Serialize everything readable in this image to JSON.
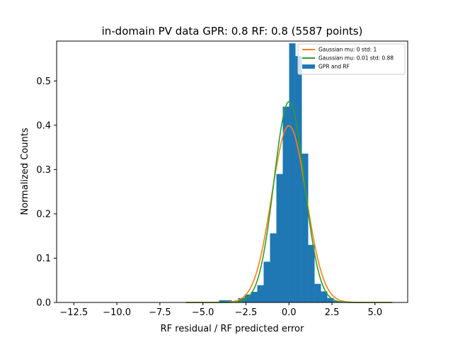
{
  "chart_data": {
    "type": "bar",
    "title": "in-domain PV data GPR: 0.8 RF: 0.8 (5587 points)",
    "xlabel": "RF residual / RF predicted error",
    "ylabel": "Normalized Counts",
    "xlim": [
      -13.5,
      6.9
    ],
    "ylim": [
      0,
      0.59
    ],
    "xticks": [
      -12.5,
      -10.0,
      -7.5,
      -5.0,
      -2.5,
      0.0,
      2.5,
      5.0
    ],
    "xtick_labels": [
      "−12.5",
      "−10.0",
      "−7.5",
      "−5.0",
      "−2.5",
      "0.0",
      "2.5",
      "5.0"
    ],
    "yticks": [
      0.0,
      0.1,
      0.2,
      0.3,
      0.4,
      0.5
    ],
    "ytick_labels": [
      "0.0",
      "0.1",
      "0.2",
      "0.3",
      "0.4",
      "0.5"
    ],
    "grid": false,
    "legend_position": "top-right",
    "histogram": {
      "name": "GPR and RF",
      "color": "#1f77b4",
      "bin_width": 0.37,
      "bins_left": [
        -4.06,
        -3.69,
        -3.32,
        -2.95,
        -2.58,
        -2.21,
        -1.84,
        -1.47,
        -1.1,
        -0.73,
        -0.36,
        0.01,
        0.38,
        0.75,
        1.12,
        1.49,
        1.86,
        2.23,
        2.6
      ],
      "values": [
        0.005,
        0.005,
        0.002,
        0.01,
        0.018,
        0.024,
        0.039,
        0.092,
        0.156,
        0.29,
        0.442,
        0.585,
        0.556,
        0.336,
        0.13,
        0.042,
        0.025,
        0.01,
        0.003
      ]
    },
    "curves": [
      {
        "name": "Gaussian mu: 0 std: 1",
        "mu": 0,
        "std": 1,
        "color": "#ff7f0e",
        "x_range": [
          -6,
          6
        ]
      },
      {
        "name": "Gaussian mu: 0.01 std: 0.88",
        "mu": 0.01,
        "std": 0.88,
        "color": "#2ca02c",
        "x_range": [
          -6,
          6
        ]
      }
    ]
  }
}
